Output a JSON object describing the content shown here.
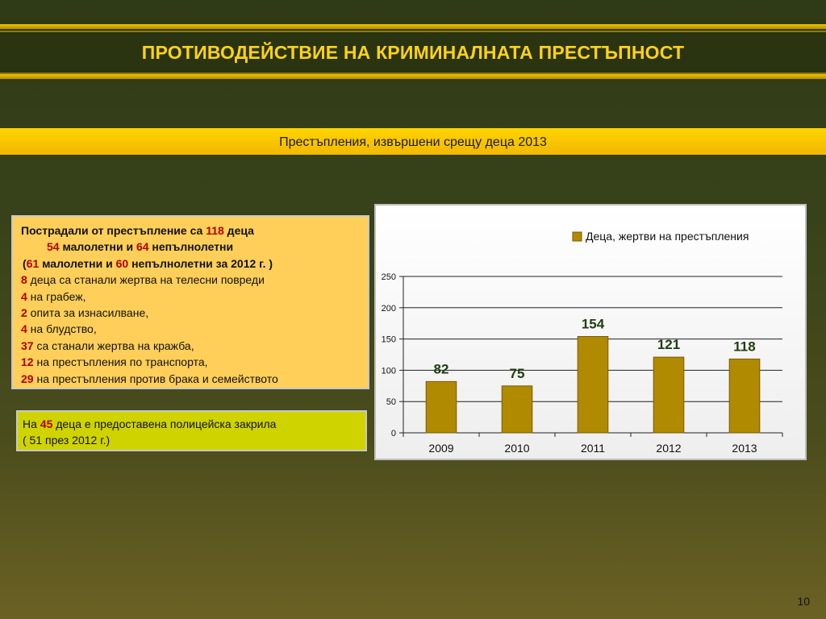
{
  "header": {
    "title": "ПРОТИВОДЕЙСТВИЕ НА КРИМИНАЛНАТА ПРЕСТЪПНОСТ"
  },
  "subtitle": "Престъпления, извършени срещу деца 2013",
  "info": {
    "l1_a": "Пострадали от престъпление са ",
    "l1_n": "118",
    "l1_b": " деца",
    "l2_n1": "54",
    "l2_a": " малолетни и ",
    "l2_n2": "64",
    "l2_b": " непълнолетни",
    "l3_a": "(",
    "l3_n1": "61",
    "l3_b": " малолетни и  ",
    "l3_n2": "60",
    "l3_c": " непълнолетни за 2012 г. )",
    "items": [
      {
        "n": "8",
        "t": "  деца са станали жертва на телесни повреди"
      },
      {
        "n": "4",
        "t": "  на грабеж,"
      },
      {
        "n": "2",
        "t": "  опита за  изнасилване,"
      },
      {
        "n": "4",
        "t": "  на блудство,"
      },
      {
        "n": "37",
        "t": " са станали жертва на кражба,"
      },
      {
        "n": "12",
        "t": " на престъпления по транспорта,"
      },
      {
        "n": "29",
        "t": " на престъпления против брака и семейството"
      }
    ]
  },
  "protection": {
    "a": "На ",
    "n": "45",
    "b": " деца е предоставена полицейска закрила",
    "line2": "( 51 през 2012 г.)"
  },
  "page_number": "10",
  "colors": {
    "bar": "#b08a00",
    "bar_edge": "#7a5a00",
    "label_green": "#1f3d10",
    "accent_red": "#b00000"
  },
  "chart_data": {
    "type": "bar",
    "categories": [
      "2009",
      "2010",
      "2011",
      "2012",
      "2013"
    ],
    "series": [
      {
        "name": "Деца, жертви на престъпления",
        "values": [
          82,
          75,
          154,
          121,
          118
        ]
      }
    ],
    "data_labels": [
      "82",
      "75",
      "154",
      "121",
      "118"
    ],
    "yticks": [
      "0",
      "50",
      "100",
      "150",
      "200",
      "250"
    ],
    "ylim": [
      0,
      250
    ],
    "grid": true,
    "legend": "top-right"
  }
}
